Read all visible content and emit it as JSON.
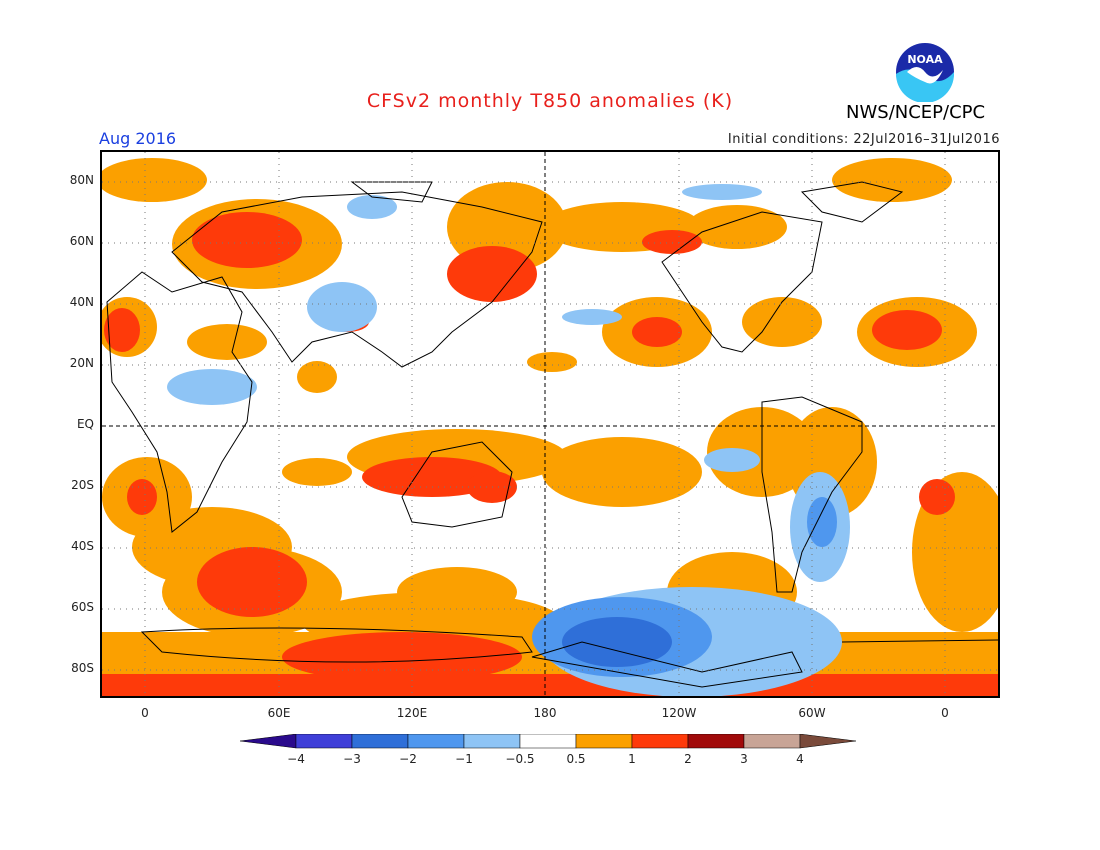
{
  "title": "CFSv2 monthly T850 anomalies (K)",
  "agency": "NWS/NCEP/CPC",
  "logo_text": "NOAA",
  "month_label": "Aug 2016",
  "initial_conditions": "Initial conditions: 22Jul2016–31Jul2016",
  "lat_labels": [
    "80N",
    "60N",
    "40N",
    "20N",
    "EQ",
    "20S",
    "40S",
    "60S",
    "80S"
  ],
  "lon_labels": [
    "0",
    "60E",
    "120E",
    "180",
    "120W",
    "60W",
    "0"
  ],
  "colorbar": {
    "ticks": [
      "−4",
      "−3",
      "−2",
      "−1",
      "−0.5",
      "0.5",
      "1",
      "2",
      "3",
      "4"
    ],
    "colors": [
      "#2a0a8c",
      "#3f3fd8",
      "#2f6fd8",
      "#4f97ee",
      "#8ec4f5",
      "#ffffff",
      "#fba000",
      "#fe3a0a",
      "#a10a0a",
      "#c8a496",
      "#7a4a3a"
    ]
  }
}
